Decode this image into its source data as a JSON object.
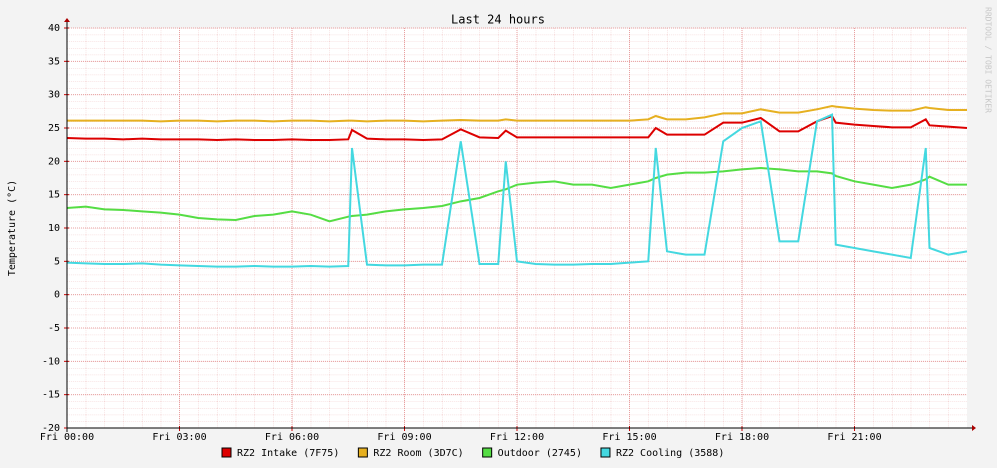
{
  "chart_data": {
    "type": "line",
    "title": "Last 24 hours",
    "y_label": "Temperature (°C)",
    "watermark": "RRDTOOL / TOBI OETIKER",
    "xlim": [
      0,
      24
    ],
    "xticks": [
      {
        "value": 0,
        "label": "Fri 00:00"
      },
      {
        "value": 3,
        "label": "Fri 03:00"
      },
      {
        "value": 6,
        "label": "Fri 06:00"
      },
      {
        "value": 9,
        "label": "Fri 09:00"
      },
      {
        "value": 12,
        "label": "Fri 12:00"
      },
      {
        "value": 15,
        "label": "Fri 15:00"
      },
      {
        "value": 18,
        "label": "Fri 18:00"
      },
      {
        "value": 21,
        "label": "Fri 21:00"
      }
    ],
    "ylim": [
      -20,
      40
    ],
    "yticks": [
      -20,
      -15,
      -10,
      -5,
      0,
      5,
      10,
      15,
      20,
      25,
      30,
      35,
      40
    ],
    "grid": true,
    "x": [
      0,
      0.5,
      1,
      1.5,
      2,
      2.5,
      3,
      3.5,
      4,
      4.5,
      5,
      5.5,
      6,
      6.5,
      7,
      7.5,
      7.6,
      8,
      8.5,
      9,
      9.5,
      10,
      10.5,
      11,
      11.5,
      11.7,
      12,
      12.5,
      13,
      13.5,
      14,
      14.5,
      15,
      15.5,
      15.7,
      16,
      16.5,
      17,
      17.5,
      18,
      18.5,
      19,
      19.5,
      20,
      20.4,
      20.5,
      21,
      21.5,
      22,
      22.5,
      22.9,
      23,
      23.5,
      24
    ],
    "series": [
      {
        "name": "RZ2 Intake (7F75)",
        "color": "#dd0000",
        "values": [
          23.5,
          23.4,
          23.4,
          23.3,
          23.4,
          23.3,
          23.3,
          23.3,
          23.2,
          23.3,
          23.2,
          23.2,
          23.3,
          23.2,
          23.2,
          23.3,
          24.7,
          23.4,
          23.3,
          23.3,
          23.2,
          23.3,
          24.8,
          23.6,
          23.5,
          24.6,
          23.6,
          23.6,
          23.6,
          23.6,
          23.6,
          23.6,
          23.6,
          23.6,
          25.0,
          24.0,
          24.0,
          24.0,
          25.8,
          25.8,
          26.5,
          24.5,
          24.5,
          26.0,
          26.8,
          25.8,
          25.5,
          25.3,
          25.1,
          25.1,
          26.3,
          25.4,
          25.2,
          25.0
        ]
      },
      {
        "name": "RZ2 Room (3D7C)",
        "color": "#e6b020",
        "values": [
          26.1,
          26.1,
          26.1,
          26.1,
          26.1,
          26.0,
          26.1,
          26.1,
          26.0,
          26.1,
          26.1,
          26.0,
          26.1,
          26.1,
          26.0,
          26.1,
          26.1,
          26.0,
          26.1,
          26.1,
          26.0,
          26.1,
          26.2,
          26.1,
          26.1,
          26.3,
          26.1,
          26.1,
          26.1,
          26.1,
          26.1,
          26.1,
          26.1,
          26.3,
          26.8,
          26.3,
          26.3,
          26.6,
          27.2,
          27.2,
          27.8,
          27.3,
          27.3,
          27.8,
          28.3,
          28.2,
          27.9,
          27.7,
          27.6,
          27.6,
          28.1,
          28.0,
          27.7,
          27.7
        ]
      },
      {
        "name": "Outdoor (2745)",
        "color": "#55dd44",
        "values": [
          13.0,
          13.2,
          12.8,
          12.7,
          12.5,
          12.3,
          12.0,
          11.5,
          11.3,
          11.2,
          11.8,
          12.0,
          12.5,
          12.0,
          11.0,
          11.7,
          11.8,
          12.0,
          12.5,
          12.8,
          13.0,
          13.3,
          14.0,
          14.5,
          15.5,
          15.8,
          16.5,
          16.8,
          17.0,
          16.5,
          16.5,
          16.0,
          16.5,
          17.0,
          17.5,
          18.0,
          18.3,
          18.3,
          18.5,
          18.8,
          19.0,
          18.8,
          18.5,
          18.5,
          18.2,
          17.8,
          17.0,
          16.5,
          16.0,
          16.5,
          17.3,
          17.7,
          16.5,
          16.5
        ]
      },
      {
        "name": "RZ2 Cooling (3588)",
        "color": "#44d8e0",
        "values": [
          4.8,
          4.7,
          4.6,
          4.6,
          4.7,
          4.5,
          4.4,
          4.3,
          4.2,
          4.2,
          4.3,
          4.2,
          4.2,
          4.3,
          4.2,
          4.3,
          22,
          4.5,
          4.4,
          4.4,
          4.5,
          4.5,
          23,
          4.6,
          4.6,
          20,
          5.0,
          4.6,
          4.5,
          4.5,
          4.6,
          4.6,
          4.8,
          5.0,
          22,
          6.5,
          6.0,
          6.0,
          23,
          25,
          26,
          8,
          8,
          26,
          27,
          7.5,
          7.0,
          6.5,
          6.0,
          5.5,
          22,
          7,
          6.0,
          6.5
        ]
      }
    ]
  }
}
